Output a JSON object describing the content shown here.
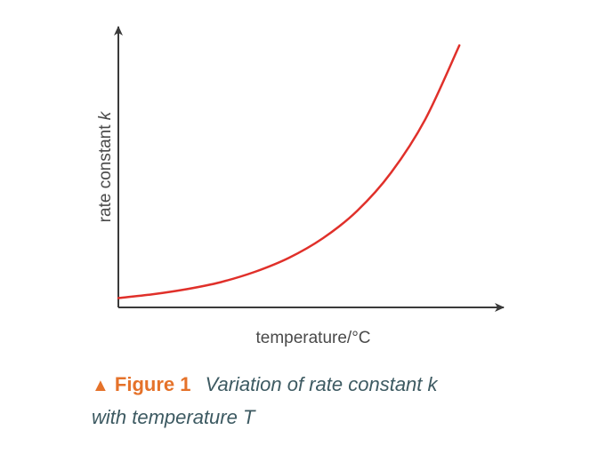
{
  "chart_data": {
    "type": "line",
    "title": "",
    "xlabel": "temperature/°C",
    "ylabel_main": "rate constant ",
    "ylabel_symbol": "k",
    "x_ticks": [],
    "y_ticks": [],
    "grid": false,
    "legend": "none",
    "series": [
      {
        "color": "#e0302a",
        "x": [
          0,
          10,
          20,
          30,
          40,
          50,
          60,
          70,
          80,
          90,
          100
        ],
        "y": [
          1,
          1.4,
          1.95,
          2.7,
          3.8,
          5.3,
          7.4,
          10.3,
          14.4,
          20.1,
          28
        ]
      }
    ],
    "xlim": [
      0,
      113
    ],
    "ylim": [
      0,
      30
    ]
  },
  "caption": {
    "marker": "▲",
    "label": "Figure 1",
    "line1": "Variation of rate constant k",
    "line2": "with temperature T"
  },
  "colors": {
    "axis": "#3a3a3a",
    "curve": "#e0302a",
    "accent": "#e5722a",
    "caption_text": "#3d5a62"
  }
}
